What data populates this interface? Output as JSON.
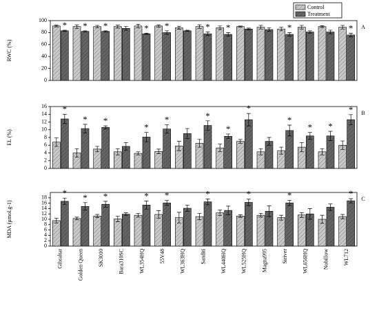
{
  "chart_data": [
    {
      "type": "bar",
      "ylabel": "RWC (%)",
      "label": "A",
      "ylim": [
        0,
        100
      ],
      "yticks": [
        0,
        20,
        40,
        60,
        80,
        100
      ],
      "legend": "top-right",
      "series": [
        {
          "name": "Control",
          "color": "#c8c8c8",
          "values": [
            91,
            90,
            90,
            90,
            91,
            91,
            88,
            90,
            88,
            90,
            89,
            86,
            89,
            90,
            89
          ],
          "errors": [
            1.5,
            3,
            2,
            2.5,
            3,
            2,
            2.5,
            3,
            3,
            1,
            3,
            3,
            3,
            1.5,
            3
          ]
        },
        {
          "name": "Treatment",
          "color": "#646464",
          "values": [
            83,
            82,
            82,
            87,
            78,
            80,
            83,
            78,
            77,
            86,
            85,
            77,
            81,
            81,
            76
          ],
          "errors": [
            1,
            1,
            1,
            3,
            1,
            3,
            1,
            3,
            3,
            1.5,
            3,
            3,
            2,
            3,
            3
          ]
        }
      ],
      "markers": [
        "*",
        "*",
        "*",
        null,
        "*",
        "*",
        null,
        "*",
        "*",
        null,
        null,
        "*",
        null,
        null,
        "*"
      ]
    },
    {
      "type": "bar",
      "ylabel": "EL (%)",
      "label": "B",
      "ylim": [
        0,
        16
      ],
      "yticks": [
        0,
        2,
        4,
        6,
        8,
        10,
        12,
        14,
        16
      ],
      "series": [
        {
          "color": "#c8c8c8",
          "values": [
            6.8,
            4,
            5,
            4.3,
            3.9,
            4.4,
            5.8,
            6.5,
            5.3,
            7,
            4.3,
            4.6,
            5.5,
            4.3,
            6
          ],
          "errors": [
            1.1,
            1.1,
            0.7,
            0.8,
            0.4,
            0.6,
            1.2,
            1,
            1,
            0.5,
            0.8,
            0.9,
            1.2,
            0.8,
            1.1
          ]
        },
        {
          "color": "#646464",
          "values": [
            12.8,
            10.3,
            10.6,
            5.7,
            8.1,
            10.2,
            9,
            11.1,
            8.3,
            12.6,
            7,
            9.8,
            8.4,
            8.4,
            12.6
          ],
          "errors": [
            1.2,
            1.1,
            0.4,
            1,
            1.2,
            1.1,
            1.3,
            1.2,
            0.6,
            1.6,
            1,
            1.4,
            0.9,
            1.2,
            1.3
          ]
        }
      ],
      "markers": [
        "*",
        "*",
        "*",
        null,
        "*",
        "*",
        null,
        "*",
        "*",
        "*",
        null,
        "*",
        "*",
        "*",
        "*"
      ]
    },
    {
      "type": "bar",
      "ylabel": "MDA (µmol.g-1)",
      "label": "C",
      "ylim": [
        0,
        20
      ],
      "yticks": [
        0,
        2,
        4,
        6,
        8,
        10,
        12,
        14,
        16,
        18
      ],
      "categories": [
        "Gibraltar",
        "Golden Queen",
        "SK3010",
        "Bara310SC",
        "WL354HQ",
        "55V48",
        "WL363HQ",
        "Sanditi",
        "WL440HQ",
        "WL525HQ",
        "Magna995",
        "Siriver",
        "WL656HQ",
        "Nobillow",
        "WL712"
      ],
      "series": [
        {
          "color": "#c8c8c8",
          "values": [
            9.5,
            10.3,
            11.2,
            10.1,
            11.5,
            11.8,
            10.6,
            11,
            12.4,
            11.2,
            11.5,
            10.6,
            11.6,
            10,
            11
          ],
          "errors": [
            0.9,
            0.5,
            0.6,
            1,
            0.7,
            1.4,
            2,
            1.2,
            1,
            0.5,
            0.7,
            0.9,
            0.9,
            1.5,
            0.8
          ]
        },
        {
          "color": "#646464",
          "values": [
            16.7,
            14.8,
            15.6,
            11.9,
            15.3,
            16.1,
            14.1,
            16.5,
            13.3,
            16.3,
            13,
            16.1,
            12,
            14.5,
            16.9
          ],
          "errors": [
            1.2,
            1.4,
            1.1,
            0.5,
            1.5,
            0.9,
            1.2,
            1.1,
            1.6,
            1.2,
            2,
            1,
            2,
            1.2,
            0.8
          ]
        }
      ],
      "markers": [
        "*",
        "*",
        "*",
        null,
        "*",
        "*",
        null,
        "*",
        null,
        "*",
        null,
        "*",
        null,
        null,
        "*"
      ]
    }
  ]
}
